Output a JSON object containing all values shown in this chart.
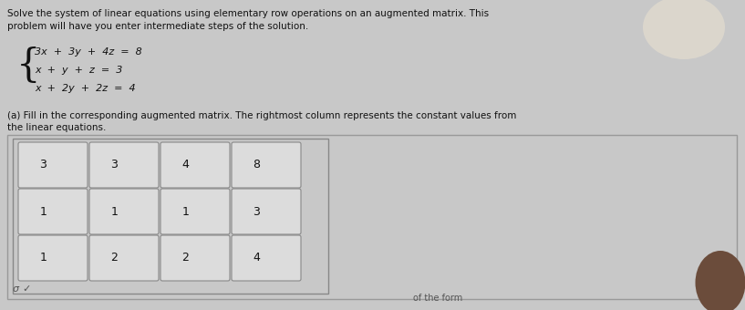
{
  "bg_color": "#c8c8c8",
  "text_color": "#111111",
  "title_line1": "Solve the system of linear equations using elementary row operations on an augmented matrix. This",
  "title_line2": "problem will have you enter intermediate steps of the solution.",
  "eq1": "3x  +  3y  +  4z  =  8",
  "eq2": "x  +  y  +  z  =  3",
  "eq3": "x  +  2y  +  2z  =  4",
  "part_a_line1": "(a) Fill in the corresponding augmented matrix. The rightmost column represents the constant values from",
  "part_a_line2": "the linear equations.",
  "matrix": [
    [
      3,
      3,
      4,
      8
    ],
    [
      1,
      1,
      1,
      3
    ],
    [
      1,
      2,
      2,
      4
    ]
  ],
  "cell_bg": "#dcdcdc",
  "cell_border": "#888888",
  "of_the_form": "of the form"
}
